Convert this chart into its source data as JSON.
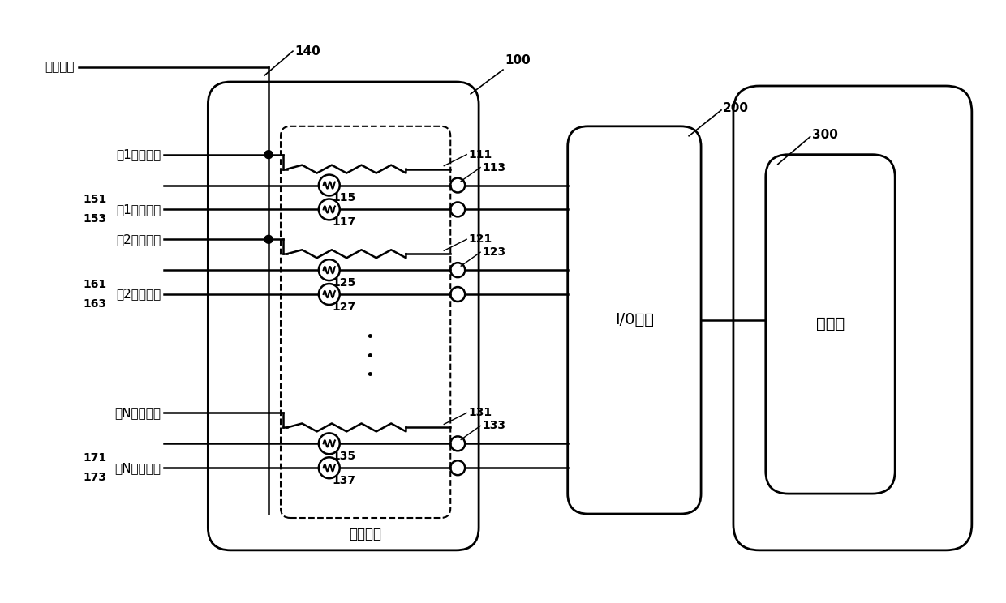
{
  "bg_color": "#ffffff",
  "line_color": "#000000",
  "labels": {
    "bypass_signal": "旁通信号",
    "field1": "第1现场信号",
    "test1": "第1试验信号",
    "field2": "第2现场信号",
    "test2": "第2试验信号",
    "fieldN": "第N现场信号",
    "testN": "第N试验信号",
    "bypass_device": "旁通装置",
    "io_signal": "I/0信号",
    "control_station": "控制站"
  },
  "ref_nums": {
    "n100": "100",
    "n111": "111",
    "n113": "113",
    "n115": "115",
    "n117": "117",
    "n121": "121",
    "n123": "123",
    "n125": "125",
    "n127": "127",
    "n131": "131",
    "n133": "133",
    "n135": "135",
    "n137": "137",
    "n140": "140",
    "n151": "151",
    "n153": "153",
    "n161": "161",
    "n163": "163",
    "n171": "171",
    "n173": "173",
    "n200": "200",
    "n300": "300"
  }
}
